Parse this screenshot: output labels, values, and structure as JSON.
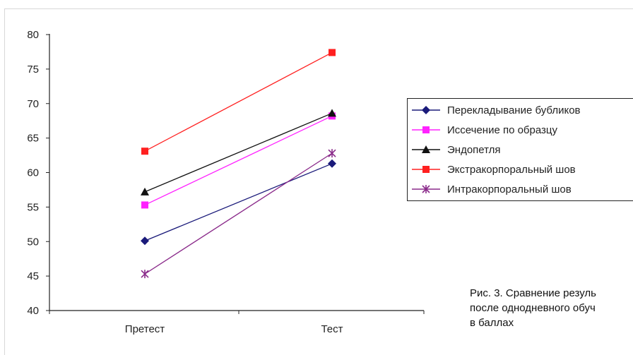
{
  "chart_data": {
    "type": "line",
    "categories": [
      "Претест",
      "Тест"
    ],
    "ylim": [
      40,
      80
    ],
    "yticks": [
      "40",
      "45",
      "50",
      "55",
      "60",
      "65",
      "70",
      "75",
      "80"
    ],
    "grid": false,
    "legend_position": "right",
    "series": [
      {
        "name": "Перекладывание бубликов",
        "values": [
          50.1,
          61.3
        ],
        "color": "#1a1a7a",
        "marker": "diamond"
      },
      {
        "name": "Иссечение по образцу",
        "values": [
          55.3,
          68.2
        ],
        "color": "#ff22ff",
        "marker": "square"
      },
      {
        "name": "Эндопетля",
        "values": [
          57.2,
          68.6
        ],
        "color": "#111111",
        "marker": "triangle"
      },
      {
        "name": "Экстракорпоральный шов",
        "values": [
          63.1,
          77.4
        ],
        "color": "#ff2020",
        "marker": "square"
      },
      {
        "name": "Интракорпоральный шов",
        "values": [
          45.3,
          62.8
        ],
        "color": "#8a2a8a",
        "marker": "star"
      }
    ]
  },
  "caption": {
    "line1": "Рис. 3. Сравнение резуль",
    "line2": "после однодневного обуч",
    "line3": "в баллах"
  }
}
